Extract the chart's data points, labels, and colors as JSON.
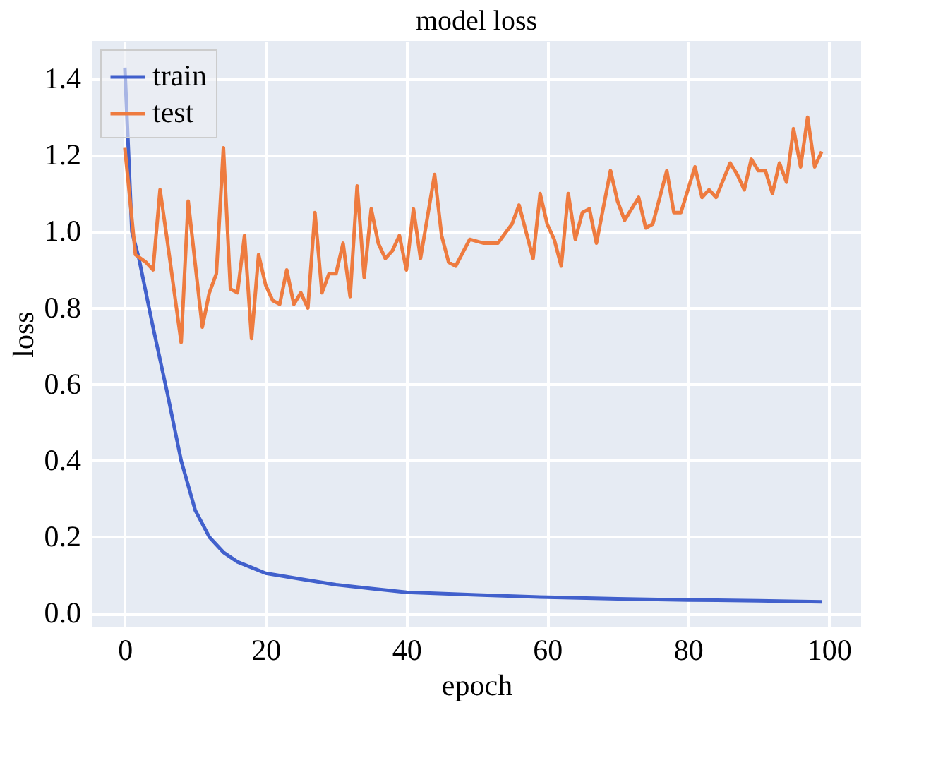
{
  "chart_data": {
    "type": "line",
    "title": "model loss",
    "xlabel": "epoch",
    "ylabel": "loss",
    "xlim": [
      -4.7,
      104.6
    ],
    "ylim": [
      -0.035,
      1.5
    ],
    "xticks": [
      0,
      20,
      40,
      60,
      80,
      100
    ],
    "yticks": [
      {
        "value": 0,
        "label": "0.0"
      },
      {
        "value": 0.2,
        "label": "0.2"
      },
      {
        "value": 0.4,
        "label": "0.4"
      },
      {
        "value": 0.6,
        "label": "0.6"
      },
      {
        "value": 0.8,
        "label": "0.8"
      },
      {
        "value": 1.0,
        "label": "1.0"
      },
      {
        "value": 1.2,
        "label": "1.2"
      },
      {
        "value": 1.4,
        "label": "1.4"
      }
    ],
    "grid": true,
    "legend": "top left",
    "line_style": "solid",
    "series": [
      {
        "name": "train",
        "color": "#4160cc",
        "x": [
          0,
          1,
          2,
          4,
          6,
          8,
          10,
          12,
          14,
          16,
          18,
          20,
          25,
          30,
          35,
          40,
          50,
          60,
          70,
          80,
          90,
          99
        ],
        "values": [
          1.43,
          1.0,
          0.93,
          0.75,
          0.58,
          0.4,
          0.27,
          0.2,
          0.16,
          0.135,
          0.12,
          0.105,
          0.09,
          0.075,
          0.065,
          0.055,
          0.048,
          0.042,
          0.038,
          0.035,
          0.033,
          0.03
        ]
      },
      {
        "name": "test",
        "color": "#ee7b3f",
        "x": [
          0,
          1.5,
          3,
          4,
          5,
          6,
          8,
          9,
          11,
          12,
          13,
          14,
          15,
          16,
          17,
          18,
          19,
          20,
          21,
          22,
          23,
          24,
          25,
          26,
          27,
          28,
          29,
          30,
          31,
          32,
          33,
          34,
          35,
          36,
          37,
          38,
          39,
          40,
          41,
          42,
          44,
          45,
          46,
          47,
          49,
          51,
          53,
          55,
          56,
          58,
          59,
          60,
          61,
          62,
          63,
          64,
          65,
          66,
          67,
          69,
          70,
          71,
          73,
          74,
          75,
          77,
          78,
          79,
          81,
          82,
          83,
          84,
          86,
          87,
          88,
          89,
          90,
          91,
          92,
          93,
          94,
          95,
          96,
          97,
          98,
          99
        ],
        "values": [
          1.22,
          0.94,
          0.92,
          0.9,
          1.11,
          0.98,
          0.71,
          1.08,
          0.75,
          0.84,
          0.89,
          1.22,
          0.85,
          0.84,
          0.99,
          0.72,
          0.94,
          0.86,
          0.82,
          0.81,
          0.9,
          0.81,
          0.84,
          0.8,
          1.05,
          0.84,
          0.89,
          0.89,
          0.97,
          0.83,
          1.12,
          0.88,
          1.06,
          0.97,
          0.93,
          0.95,
          0.99,
          0.9,
          1.06,
          0.93,
          1.15,
          0.99,
          0.92,
          0.91,
          0.98,
          0.97,
          0.97,
          1.02,
          1.07,
          0.93,
          1.1,
          1.02,
          0.98,
          0.91,
          1.1,
          0.98,
          1.05,
          1.06,
          0.97,
          1.16,
          1.08,
          1.03,
          1.09,
          1.01,
          1.02,
          1.16,
          1.05,
          1.05,
          1.17,
          1.09,
          1.11,
          1.09,
          1.18,
          1.15,
          1.11,
          1.19,
          1.16,
          1.16,
          1.1,
          1.18,
          1.13,
          1.27,
          1.17,
          1.3,
          1.17,
          1.21
        ]
      }
    ]
  }
}
